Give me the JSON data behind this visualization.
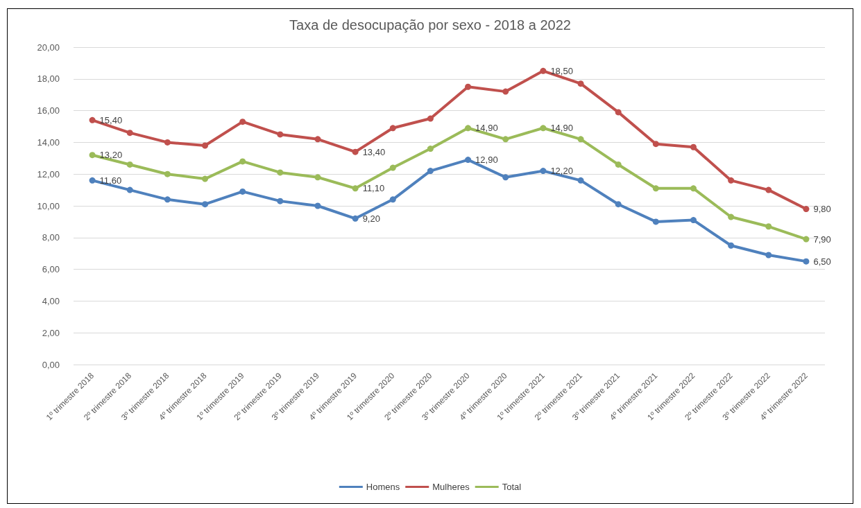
{
  "chart_data": {
    "type": "line",
    "title": "Taxa de desocupação por sexo - 2018 a 2022",
    "categories": [
      "1º trimestre 2018",
      "2º trimestre 2018",
      "3º trimestre 2018",
      "4º trimestre 2018",
      "1º trimestre 2019",
      "2º trimestre 2019",
      "3º trimestre 2019",
      "4º trimestre 2019",
      "1º trimestre 2020",
      "2º trimestre 2020",
      "3º trimestre 2020",
      "4º trimestre 2020",
      "1º trimestre 2021",
      "2º trimestre 2021",
      "3º trimestre 2021",
      "4º trimestre 2021",
      "1º trimestre 2022",
      "2º trimestre 2022",
      "3º trimestre 2022",
      "4º trimestre 2022"
    ],
    "series": [
      {
        "name": "Homens",
        "color": "#4f81bd",
        "values": [
          11.6,
          11.0,
          10.4,
          10.1,
          10.9,
          10.3,
          10.0,
          9.2,
          10.4,
          12.2,
          12.9,
          11.8,
          12.2,
          11.6,
          10.1,
          9.0,
          9.1,
          7.5,
          6.9,
          6.5
        ],
        "value_labels": [
          "11,60",
          null,
          null,
          null,
          null,
          null,
          null,
          "9,20",
          null,
          null,
          "12,90",
          null,
          "12,20",
          null,
          null,
          null,
          null,
          null,
          null,
          "6,50"
        ]
      },
      {
        "name": "Mulheres",
        "color": "#c0504d",
        "values": [
          15.4,
          14.6,
          14.0,
          13.8,
          15.3,
          14.5,
          14.2,
          13.4,
          14.9,
          15.5,
          17.5,
          17.2,
          18.5,
          17.7,
          15.9,
          13.9,
          13.7,
          11.6,
          11.0,
          9.8
        ],
        "value_labels": [
          "15,40",
          null,
          null,
          null,
          null,
          null,
          null,
          "13,40",
          null,
          null,
          null,
          null,
          "18,50",
          null,
          null,
          null,
          null,
          null,
          null,
          "9,80"
        ]
      },
      {
        "name": "Total",
        "color": "#9bbb59",
        "values": [
          13.2,
          12.6,
          12.0,
          11.7,
          12.8,
          12.1,
          11.8,
          11.1,
          12.4,
          13.6,
          14.9,
          14.2,
          14.9,
          14.2,
          12.6,
          11.1,
          11.1,
          9.3,
          8.7,
          7.9
        ],
        "value_labels": [
          "13,20",
          null,
          null,
          null,
          null,
          null,
          null,
          "11,10",
          null,
          null,
          "14,90",
          null,
          "14,90",
          null,
          null,
          null,
          null,
          null,
          null,
          "7,90"
        ]
      }
    ],
    "ylim": [
      0,
      20
    ],
    "yticks": [
      {
        "value": 0,
        "label": "0,00"
      },
      {
        "value": 2,
        "label": "2,00"
      },
      {
        "value": 4,
        "label": "4,00"
      },
      {
        "value": 6,
        "label": "6,00"
      },
      {
        "value": 8,
        "label": "8,00"
      },
      {
        "value": 10,
        "label": "10,00"
      },
      {
        "value": 12,
        "label": "12,00"
      },
      {
        "value": 14,
        "label": "14,00"
      },
      {
        "value": 16,
        "label": "16,00"
      },
      {
        "value": 18,
        "label": "18,00"
      },
      {
        "value": 20,
        "label": "20,00"
      }
    ],
    "grid": "y",
    "legend": "bottom",
    "marker": "circle",
    "line_style": "solid"
  }
}
